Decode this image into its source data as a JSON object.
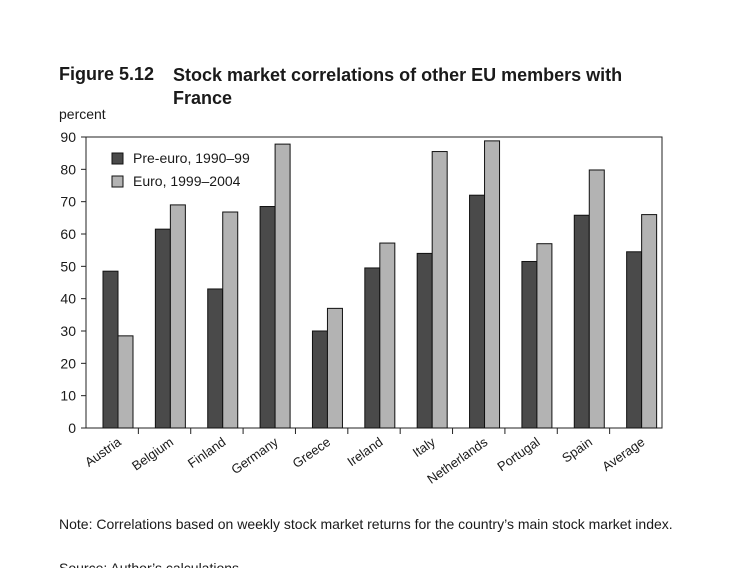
{
  "figure": {
    "number": "Figure 5.12",
    "title": "Stock market correlations of other EU members with France",
    "y_unit": "percent",
    "note": "Note: Correlations based on weekly stock market returns for the country’s main stock market index.",
    "source": "Source: Author’s calculations."
  },
  "chart_data": {
    "type": "bar",
    "title": "Stock market correlations of other EU members with France",
    "xlabel": "",
    "ylabel": "percent",
    "ylim": [
      0,
      90
    ],
    "yticks": [
      0,
      10,
      20,
      30,
      40,
      50,
      60,
      70,
      80,
      90
    ],
    "grid": false,
    "legend_position": "top-left",
    "categories": [
      "Austria",
      "Belgium",
      "Finland",
      "Germany",
      "Greece",
      "Ireland",
      "Italy",
      "Netherlands",
      "Portugal",
      "Spain",
      "Average"
    ],
    "series": [
      {
        "name": "Pre-euro, 1990–99",
        "color": "#4a4a4a",
        "values": [
          48.5,
          61.5,
          43,
          68.5,
          30,
          49.5,
          54,
          72,
          51.5,
          65.8,
          54.5
        ]
      },
      {
        "name": "Euro, 1999–2004",
        "color": "#b3b3b3",
        "values": [
          28.5,
          69,
          66.8,
          87.8,
          37,
          57.2,
          85.5,
          88.8,
          57,
          79.8,
          66
        ]
      }
    ]
  }
}
